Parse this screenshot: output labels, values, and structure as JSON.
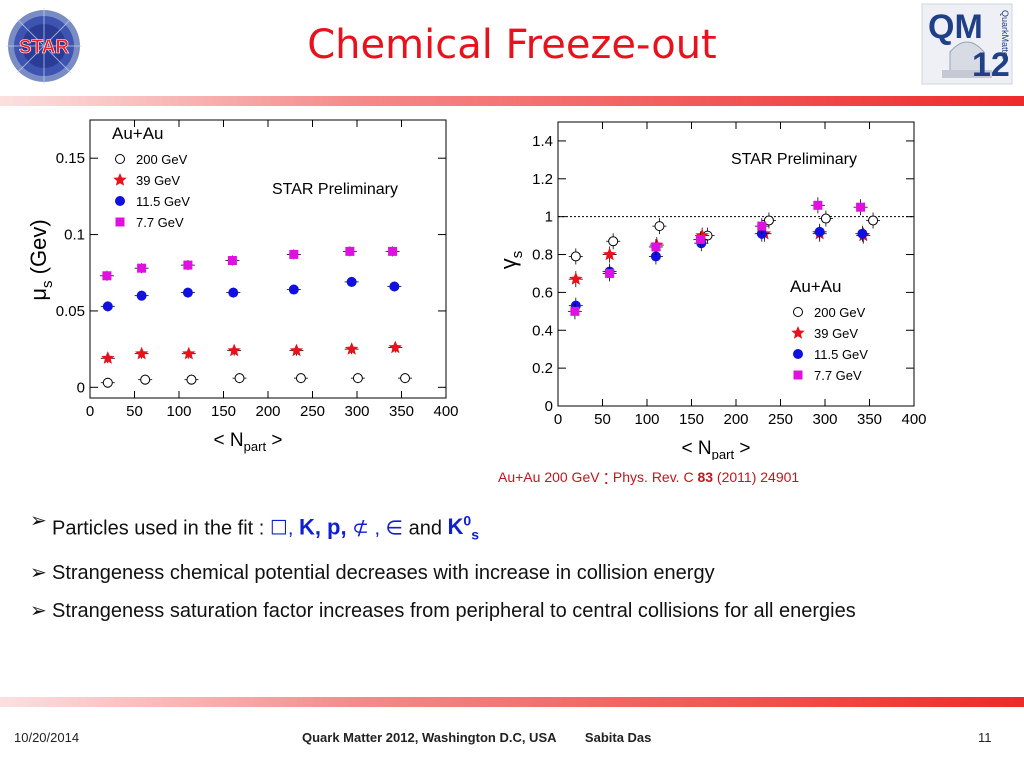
{
  "title": "Chemical Freeze-out",
  "star_logo_text": "STAR",
  "qm_logo_text": [
    "QM",
    "12",
    "QuarkMatter"
  ],
  "chart_data": [
    {
      "type": "scatter",
      "ylabel": "μs (Gev)",
      "xlabel": "< Npart >",
      "xlim": [
        0,
        400
      ],
      "ylim": [
        -0.007,
        0.175
      ],
      "x_ticks": [
        "0",
        "50",
        "100",
        "150",
        "200",
        "250",
        "300",
        "350",
        "400"
      ],
      "y_ticks": [
        "0",
        "0.05",
        "0.1",
        "0.15"
      ],
      "legend_title": "Au+Au",
      "annotation": "STAR Preliminary",
      "grid": false,
      "series": [
        {
          "name": "200 GeV",
          "marker": "open-circle",
          "color": "#000000",
          "x": [
            20,
            62,
            114,
            168,
            237,
            301,
            354
          ],
          "y": [
            0.003,
            0.005,
            0.005,
            0.006,
            0.006,
            0.006,
            0.006
          ]
        },
        {
          "name": "39 GeV",
          "marker": "star",
          "color": "#e8121d",
          "x": [
            20,
            58,
            111,
            162,
            232,
            294,
            343
          ],
          "y": [
            0.019,
            0.022,
            0.022,
            0.024,
            0.024,
            0.025,
            0.026
          ]
        },
        {
          "name": "11.5 GeV",
          "marker": "filled-circle",
          "color": "#1010e0",
          "x": [
            20,
            58,
            110,
            161,
            229,
            294,
            342
          ],
          "y": [
            0.053,
            0.06,
            0.062,
            0.062,
            0.064,
            0.069,
            0.066
          ]
        },
        {
          "name": "7.7 GeV",
          "marker": "square",
          "color": "#e010e0",
          "x": [
            19,
            58,
            110,
            160,
            229,
            292,
            340
          ],
          "y": [
            0.073,
            0.078,
            0.08,
            0.083,
            0.087,
            0.089,
            0.089
          ]
        }
      ]
    },
    {
      "type": "scatter",
      "ylabel": "γs",
      "xlabel": "< Npart >",
      "xlim": [
        0,
        400
      ],
      "ylim": [
        0,
        1.5
      ],
      "x_ticks": [
        "0",
        "50",
        "100",
        "150",
        "200",
        "250",
        "300",
        "350",
        "400"
      ],
      "y_ticks": [
        "0",
        "0.2",
        "0.4",
        "0.6",
        "0.8",
        "1",
        "1.2",
        "1.4"
      ],
      "reference_line_y": 1,
      "legend_title": "Au+Au",
      "annotation": "STAR Preliminary",
      "grid": false,
      "series": [
        {
          "name": "200 GeV",
          "marker": "open-circle",
          "color": "#000000",
          "x": [
            20,
            62,
            114,
            168,
            237,
            301,
            354
          ],
          "y": [
            0.79,
            0.87,
            0.95,
            0.9,
            0.98,
            0.99,
            0.98
          ]
        },
        {
          "name": "39 GeV",
          "marker": "star",
          "color": "#e8121d",
          "x": [
            20,
            58,
            111,
            162,
            232,
            294,
            343
          ],
          "y": [
            0.67,
            0.8,
            0.85,
            0.9,
            0.91,
            0.91,
            0.9
          ]
        },
        {
          "name": "11.5 GeV",
          "marker": "filled-circle",
          "color": "#1010e0",
          "x": [
            20,
            58,
            110,
            161,
            229,
            294,
            342
          ],
          "y": [
            0.53,
            0.71,
            0.79,
            0.86,
            0.91,
            0.92,
            0.91
          ]
        },
        {
          "name": "7.7 GeV",
          "marker": "square",
          "color": "#e010e0",
          "x": [
            19,
            58,
            110,
            160,
            229,
            292,
            340
          ],
          "y": [
            0.5,
            0.7,
            0.84,
            0.88,
            0.95,
            1.06,
            1.05
          ]
        }
      ]
    }
  ],
  "citation": {
    "prefix": "Au+Au 200 GeV ",
    "colon": ":",
    "journal": " Phys. Rev. C ",
    "volume": "83",
    "rest": " (2011) 24901"
  },
  "bullets": {
    "b1_text": "Particles used in the fit : ",
    "b1_sym1": "☐, ",
    "b1_kp": "K, p,",
    "b1_sym2": " ⊄ , ∈",
    "b1_and": " and ",
    "b1_k0": "K",
    "b1_k0_sup": "0",
    "b1_k0_sub": "s",
    "b2": "Strangeness chemical potential decreases with increase in collision energy",
    "b3": "Strangeness saturation factor increases from peripheral to central collisions for all energies",
    "arrow": "➢"
  },
  "footer": {
    "date": "10/20/2014",
    "center": "Quark Matter 2012, Washington D.C, USA        Sabita Das",
    "page": "11"
  }
}
